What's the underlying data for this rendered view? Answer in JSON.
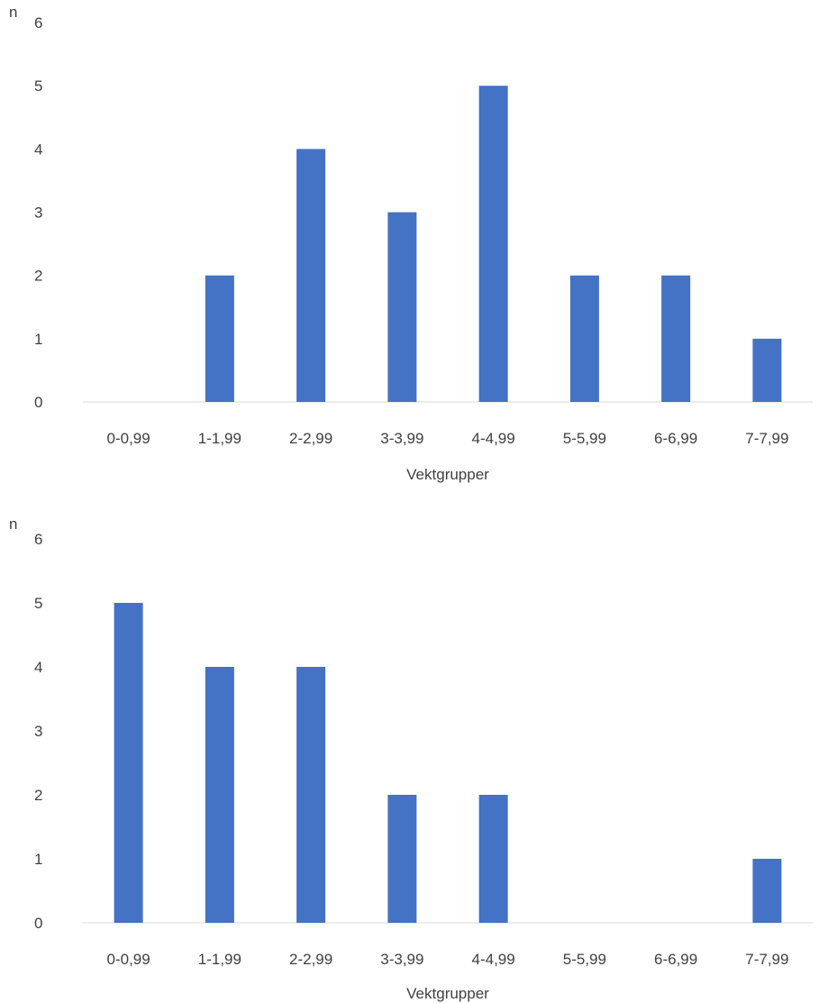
{
  "colors": {
    "bar": "#4472c4",
    "baseline": "#d9d9d9",
    "text": "#404040"
  },
  "chart_data": [
    {
      "type": "bar",
      "title": "",
      "xlabel": "Vektgrupper",
      "ylabel": "n",
      "ylim": [
        0,
        6
      ],
      "yticks": [
        "0",
        "1",
        "2",
        "3",
        "4",
        "5",
        "6"
      ],
      "categories": [
        "0-0,99",
        "1-1,99",
        "2-2,99",
        "3-3,99",
        "4-4,99",
        "5-5,99",
        "6-6,99",
        "7-7,99"
      ],
      "values": [
        0,
        2,
        4,
        3,
        5,
        2,
        2,
        1
      ],
      "grid": false,
      "legend": "none"
    },
    {
      "type": "bar",
      "title": "",
      "xlabel": "Vektgrupper",
      "ylabel": "n",
      "ylim": [
        0,
        6
      ],
      "yticks": [
        "0",
        "1",
        "2",
        "3",
        "4",
        "5",
        "6"
      ],
      "categories": [
        "0-0,99",
        "1-1,99",
        "2-2,99",
        "3-3,99",
        "4-4,99",
        "5-5,99",
        "6-6,99",
        "7-7,99"
      ],
      "values": [
        5,
        4,
        4,
        2,
        2,
        0,
        0,
        1
      ],
      "grid": false,
      "legend": "none"
    }
  ]
}
